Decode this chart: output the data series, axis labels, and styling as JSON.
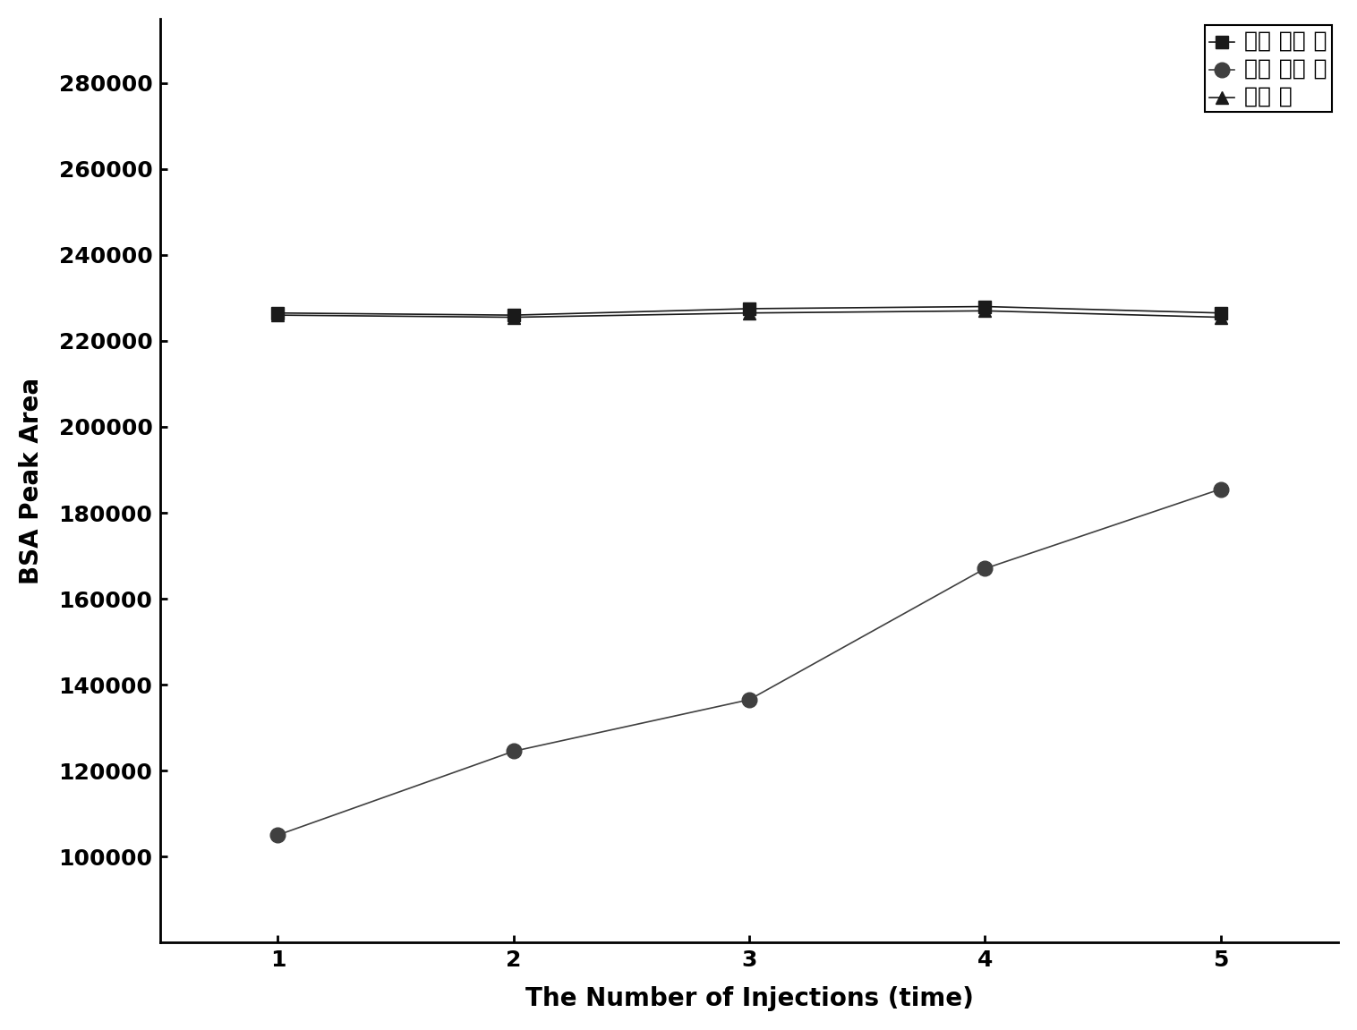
{
  "x": [
    1,
    2,
    3,
    4,
    5
  ],
  "series": [
    {
      "label": "改性 后介 质",
      "values": [
        226500,
        226000,
        227500,
        228000,
        226500
      ],
      "marker": "s",
      "color": "#1a1a1a",
      "markersize": 10
    },
    {
      "label": "改性 前介 质",
      "values": [
        105000,
        124500,
        136500,
        167000,
        185500
      ],
      "marker": "o",
      "color": "#404040",
      "markersize": 12
    },
    {
      "label": "连接 头",
      "values": [
        226000,
        225500,
        226500,
        227000,
        225500
      ],
      "marker": "^",
      "color": "#1a1a1a",
      "markersize": 10
    }
  ],
  "xlabel": "The Number of Injections (time)",
  "ylabel": "BSA Peak Area",
  "xlim": [
    0.5,
    5.5
  ],
  "ylim": [
    80000,
    295000
  ],
  "yticks": [
    100000,
    120000,
    140000,
    160000,
    180000,
    200000,
    220000,
    240000,
    260000,
    280000
  ],
  "xticks": [
    1,
    2,
    3,
    4,
    5
  ],
  "background_color": "#ffffff",
  "line_width": 1.2,
  "xlabel_fontsize": 20,
  "ylabel_fontsize": 20,
  "tick_fontsize": 18,
  "legend_fontsize": 18
}
